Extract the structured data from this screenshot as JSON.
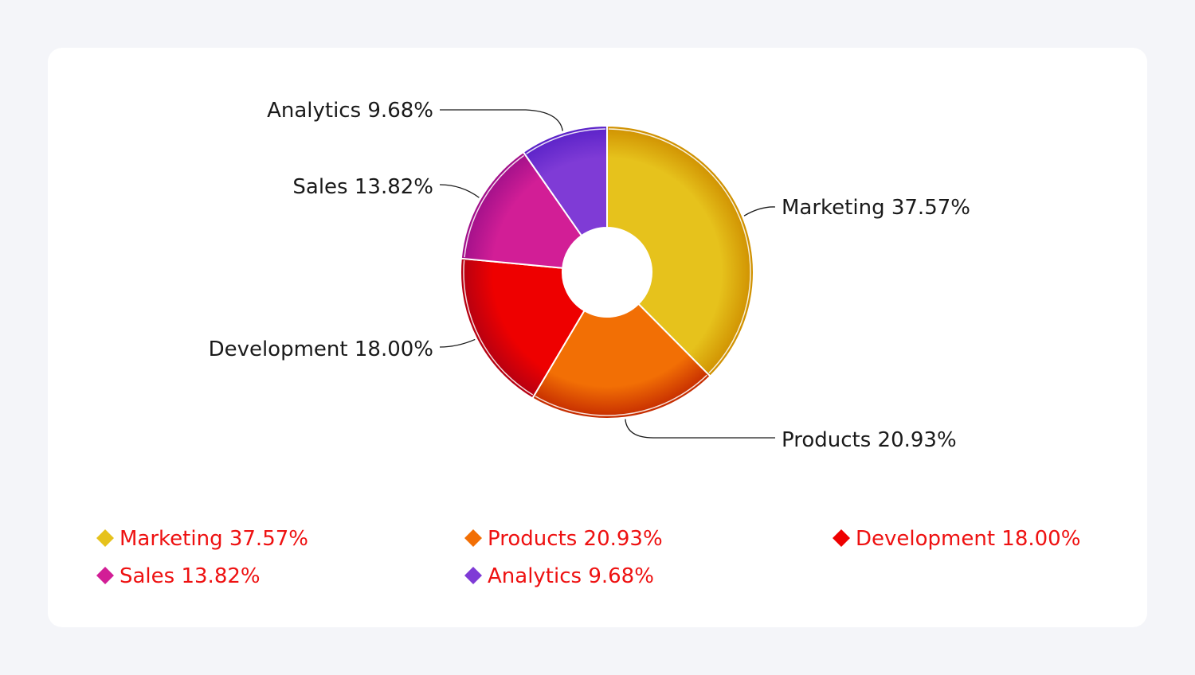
{
  "chart_data": {
    "type": "pie",
    "donut": true,
    "categories": [
      "Marketing",
      "Products",
      "Development",
      "Sales",
      "Analytics"
    ],
    "values": [
      37.57,
      20.93,
      18.0,
      13.82,
      9.68
    ],
    "colors": [
      "#e6c21c",
      "#f26f05",
      "#ee0000",
      "#d21e96",
      "#7f3bd6"
    ],
    "edge_colors": [
      "#cf8f00",
      "#c42a00",
      "#b30012",
      "#a0108a",
      "#5a22c8"
    ],
    "slice_labels": [
      "Marketing 37.57%",
      "Products 20.93%",
      "Development 18.00%",
      "Sales 13.82%",
      "Analytics 9.68%"
    ],
    "legend": {
      "placement": "bottom",
      "items": [
        "Marketing 37.57%",
        "Products 20.93%",
        "Development 18.00%",
        "Sales 13.82%",
        "Analytics 9.68%"
      ],
      "text_color": "#ee1111"
    },
    "title": ""
  }
}
